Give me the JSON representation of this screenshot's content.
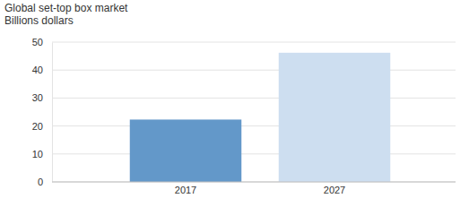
{
  "chart_data": {
    "type": "bar",
    "title": "Global set-top box market",
    "subtitle": "Billions dollars",
    "categories": [
      "2017",
      "2027"
    ],
    "values": [
      22.3,
      46.2
    ],
    "colors": [
      "#6398c9",
      "#cddef0"
    ],
    "ylim": [
      0,
      50
    ],
    "yticks": [
      0,
      10,
      20,
      30,
      40,
      50
    ],
    "grid": true
  }
}
